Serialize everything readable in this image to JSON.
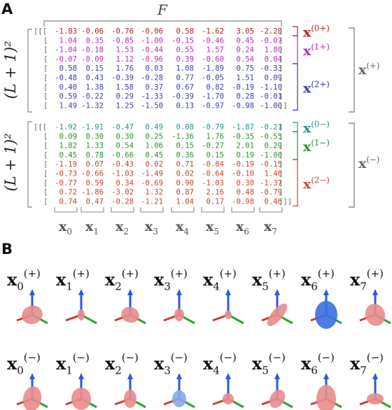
{
  "panel_a": {
    "label": "A",
    "matrix_label": "F",
    "rows_label": "(L + 1)²",
    "plus_block": {
      "group_label": "x(+)",
      "groups": [
        {
          "label": "x(0+)",
          "color": "#b0222a",
          "rows": [
            [
              "-1.83",
              "-0.06",
              "-0.76",
              "-0.06",
              "0.58",
              "-1.62",
              "3.05",
              "-2.28"
            ]
          ]
        },
        {
          "label": "x(1+)",
          "color": "#b62fb0",
          "rows": [
            [
              "1.04",
              "0.35",
              "-0.85",
              "-1.00",
              "-0.15",
              "-0.46",
              "0.45",
              "-0.07"
            ],
            [
              "-1.04",
              "-0.18",
              "1.53",
              "-0.44",
              "0.55",
              "1.57",
              "0.24",
              "1.80"
            ],
            [
              "-0.07",
              "-0.09",
              "1.12",
              "-0.96",
              "0.39",
              "-0.60",
              "0.54",
              "0.04"
            ]
          ]
        },
        {
          "label": "x(2+)",
          "color": "#3c3cb0",
          "rows": [
            [
              "0.58",
              "0.15",
              "1.76",
              "0.03",
              "1.08",
              "-1.89",
              "0.75",
              "-0.33"
            ],
            [
              "-0.48",
              "0.43",
              "-0.39",
              "-0.28",
              "0.77",
              "-0.05",
              "1.51",
              "0.09"
            ],
            [
              "0.40",
              "1.38",
              "1.58",
              "0.37",
              "0.67",
              "0.82",
              "-0.19",
              "-1.10"
            ],
            [
              "0.59",
              "-0.22",
              "0.29",
              "-1.33",
              "-0.39",
              "-1.70",
              "0.28",
              "-0.01"
            ],
            [
              "1.49",
              "-1.32",
              "1.25",
              "-1.50",
              "0.13",
              "-0.97",
              "-0.98",
              "-1.00"
            ]
          ]
        }
      ]
    },
    "minus_block": {
      "group_label": "x(−)",
      "groups": [
        {
          "label": "x(0−)",
          "color": "#2a8f8f",
          "rows": [
            [
              "-1.92",
              "-1.91",
              "-0.47",
              "0.49",
              "0.08",
              "-0.79",
              "-1.87",
              "-0.21"
            ]
          ]
        },
        {
          "label": "x(1−)",
          "color": "#2f8f2f",
          "rows": [
            [
              "0.09",
              "0.30",
              "0.30",
              "0.25",
              "-1.36",
              "1.76",
              "-0.35",
              "-0.55"
            ],
            [
              "1.82",
              "1.33",
              "0.54",
              "1.06",
              "0.15",
              "-0.27",
              "2.01",
              "0.29"
            ],
            [
              "0.45",
              "0.78",
              "-0.66",
              "0.45",
              "0.36",
              "0.15",
              "0.19",
              "-1.00"
            ]
          ]
        },
        {
          "label": "x(2−)",
          "color": "#c8462a",
          "rows": [
            [
              "-1.19",
              "0.07",
              "-0.43",
              "0.02",
              "0.71",
              "-0.84",
              "-0.19",
              "-0.15"
            ],
            [
              "-0.73",
              "-0.66",
              "-1.03",
              "-1.49",
              "0.02",
              "-0.64",
              "-0.10",
              "1.46"
            ],
            [
              "-0.77",
              "0.59",
              "0.34",
              "-0.69",
              "0.90",
              "-1.03",
              "0.30",
              "-1.37"
            ],
            [
              "0.72",
              "-1.86",
              "-3.02",
              "1.32",
              "0.87",
              "2.16",
              "0.48",
              "-0.79"
            ],
            [
              "0.74",
              "0.47",
              "-0.28",
              "-1.21",
              "1.04",
              "0.17",
              "-0.98",
              "0.46"
            ]
          ]
        }
      ]
    },
    "column_labels": [
      "x0",
      "x1",
      "x2",
      "x3",
      "x4",
      "x5",
      "x6",
      "x7"
    ]
  },
  "panel_b": {
    "label": "B",
    "plus_labels": [
      "x0(+)",
      "x1(+)",
      "x2(+)",
      "x3(+)",
      "x4(+)",
      "x5(+)",
      "x6(+)",
      "x7(+)"
    ],
    "minus_labels": [
      "x0(−)",
      "x1(−)",
      "x2(−)",
      "x3(−)",
      "x4(−)",
      "x5(−)",
      "x6(−)",
      "x7(−)"
    ]
  }
}
